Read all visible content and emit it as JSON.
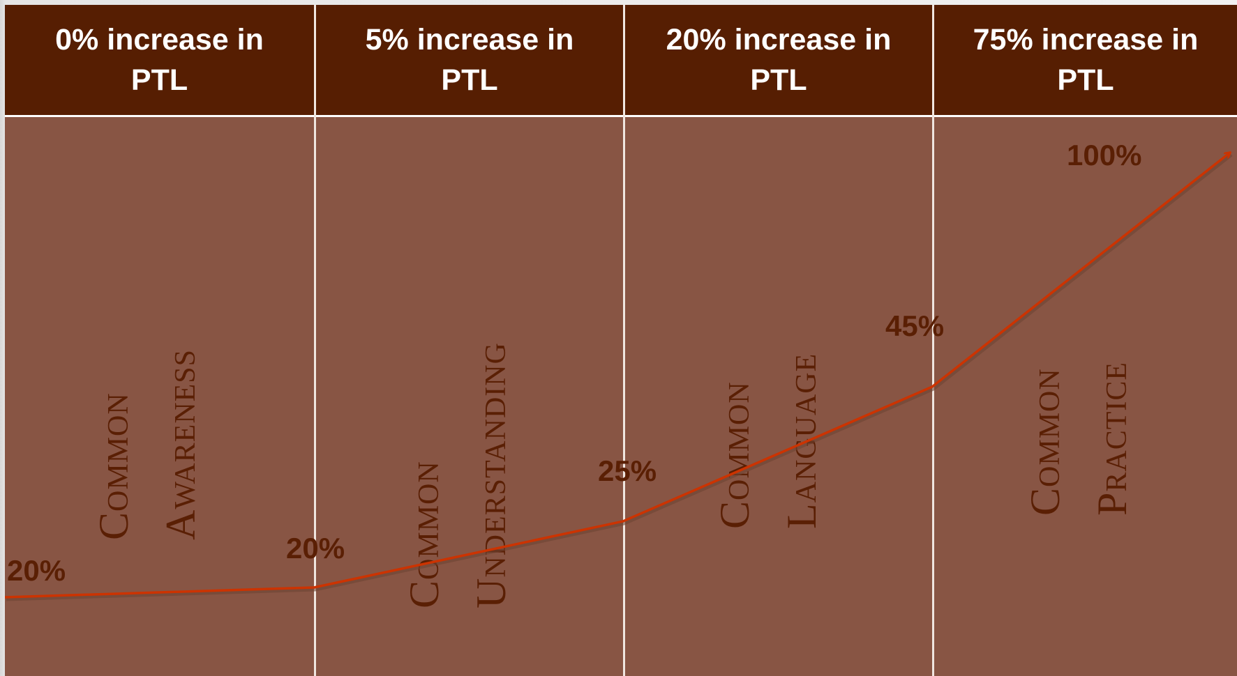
{
  "headers": [
    {
      "line1": "0% increase in",
      "line2": "PTL"
    },
    {
      "line1": "5% increase in",
      "line2": "PTL"
    },
    {
      "line1": "20% increase in",
      "line2": "PTL"
    },
    {
      "line1": "75% increase in",
      "line2": "PTL"
    }
  ],
  "stages": [
    {
      "line1": "Common",
      "line2": "Awareness"
    },
    {
      "line1": "Common",
      "line2": "Understanding"
    },
    {
      "line1": "Common",
      "line2": "Language"
    },
    {
      "line1": "Common",
      "line2": "Practice"
    }
  ],
  "percentages": [
    "20%",
    "20%",
    "25%",
    "45%",
    "100%"
  ],
  "colors": {
    "header_bg": "#561e02",
    "body_bg": "#885544",
    "label_text": "#5a1f04",
    "curve": "#cc3300"
  }
}
